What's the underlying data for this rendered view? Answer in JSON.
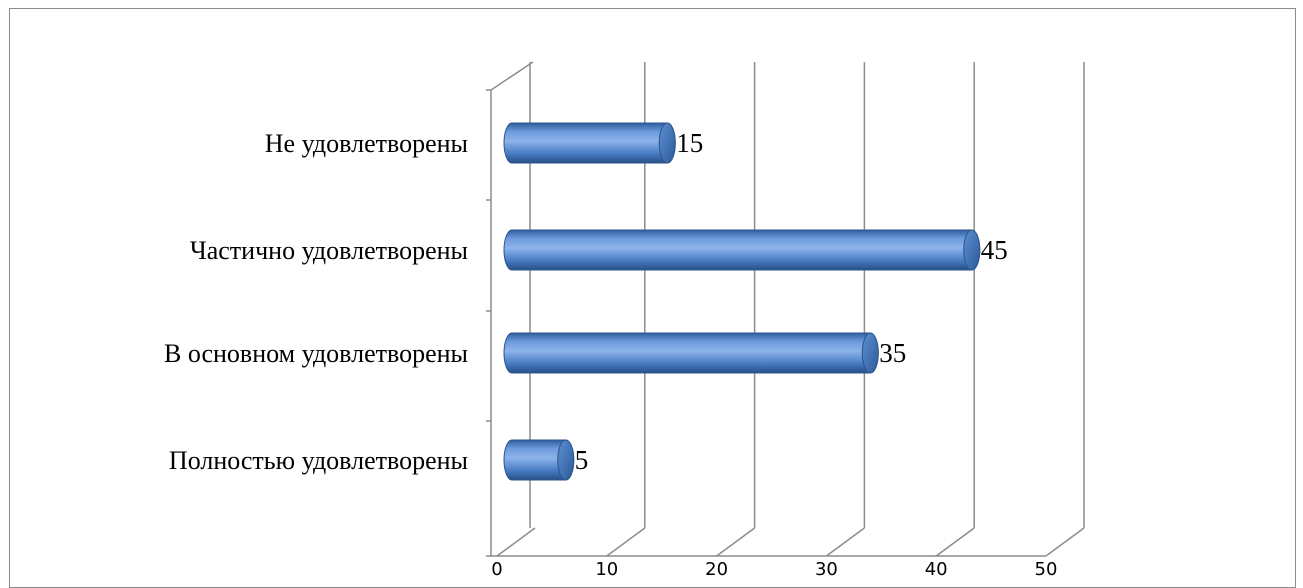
{
  "chart_data": {
    "type": "bar",
    "orientation": "horizontal",
    "style": "3d-cylinder",
    "categories": [
      "Не удовлетворены",
      "Частично удовлетворены",
      "В основном удовлетворены",
      "Полностью удовлетворены"
    ],
    "values": [
      15,
      45,
      35,
      5
    ],
    "x_ticks": [
      "0",
      "10",
      "20",
      "30",
      "40",
      "50"
    ],
    "xlim": [
      0,
      50
    ],
    "title": "",
    "xlabel": "",
    "ylabel": "",
    "grid": true,
    "legend": "none",
    "data_labels": true,
    "colors": {
      "bar": "#4a7ec5",
      "bar_dark": "#2c5a97",
      "bar_light": "#8fb4e8",
      "grid": "#8c8c8c"
    }
  }
}
